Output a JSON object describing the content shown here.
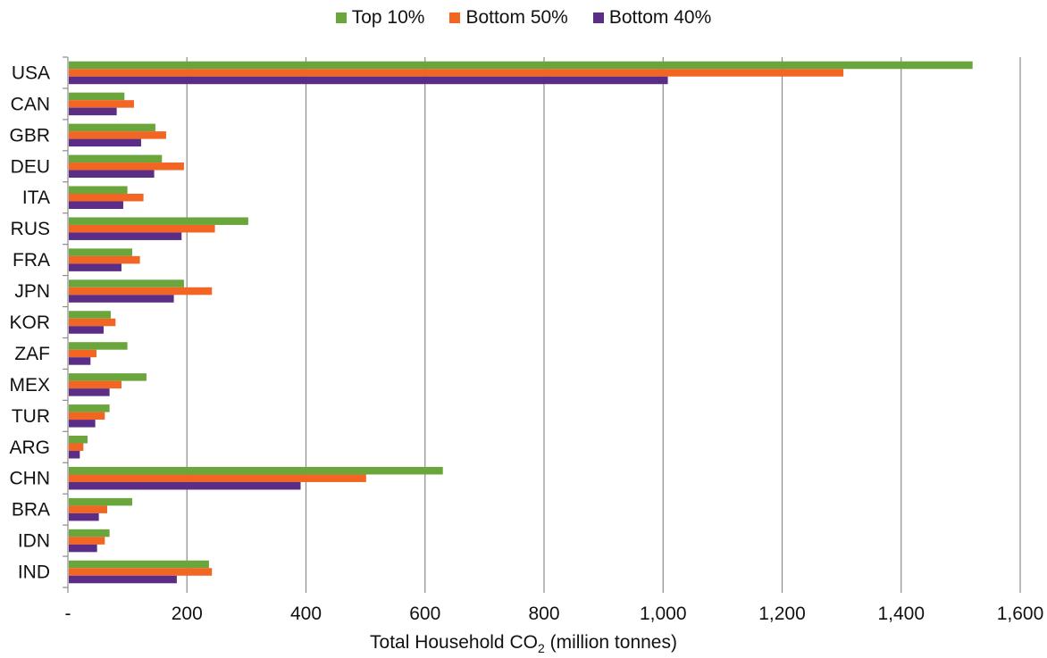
{
  "chart_data": {
    "type": "bar",
    "orientation": "horizontal",
    "categories": [
      "USA",
      "CAN",
      "GBR",
      "DEU",
      "ITA",
      "RUS",
      "FRA",
      "JPN",
      "KOR",
      "ZAF",
      "MEX",
      "TUR",
      "ARG",
      "CHN",
      "BRA",
      "IDN",
      "IND"
    ],
    "series": [
      {
        "name": "Top 10%",
        "color": "#6aa63c",
        "values": [
          1520,
          95,
          147,
          158,
          100,
          303,
          108,
          195,
          72,
          100,
          132,
          70,
          33,
          630,
          108,
          70,
          237
        ]
      },
      {
        "name": "Bottom 50%",
        "color": "#f26522",
        "values": [
          1303,
          111,
          165,
          195,
          127,
          247,
          121,
          242,
          80,
          48,
          90,
          62,
          26,
          501,
          66,
          62,
          242
        ]
      },
      {
        "name": "Bottom 40%",
        "color": "#5b2d86",
        "values": [
          1008,
          82,
          123,
          145,
          93,
          191,
          90,
          178,
          60,
          38,
          70,
          46,
          20,
          391,
          52,
          49,
          183
        ]
      }
    ],
    "xlim": [
      0,
      1600
    ],
    "xticks": [
      0,
      200,
      400,
      600,
      800,
      1000,
      1200,
      1400,
      1600
    ],
    "xtick_labels": [
      "-",
      "200",
      "400",
      "600",
      "800",
      "1,000",
      "1,200",
      "1,400",
      "1,600"
    ],
    "xlabel_prefix": "Total Household CO",
    "xlabel_sub": "2",
    "xlabel_suffix": " (million tonnes)",
    "grid": "vertical",
    "legend_position": "top-center"
  }
}
